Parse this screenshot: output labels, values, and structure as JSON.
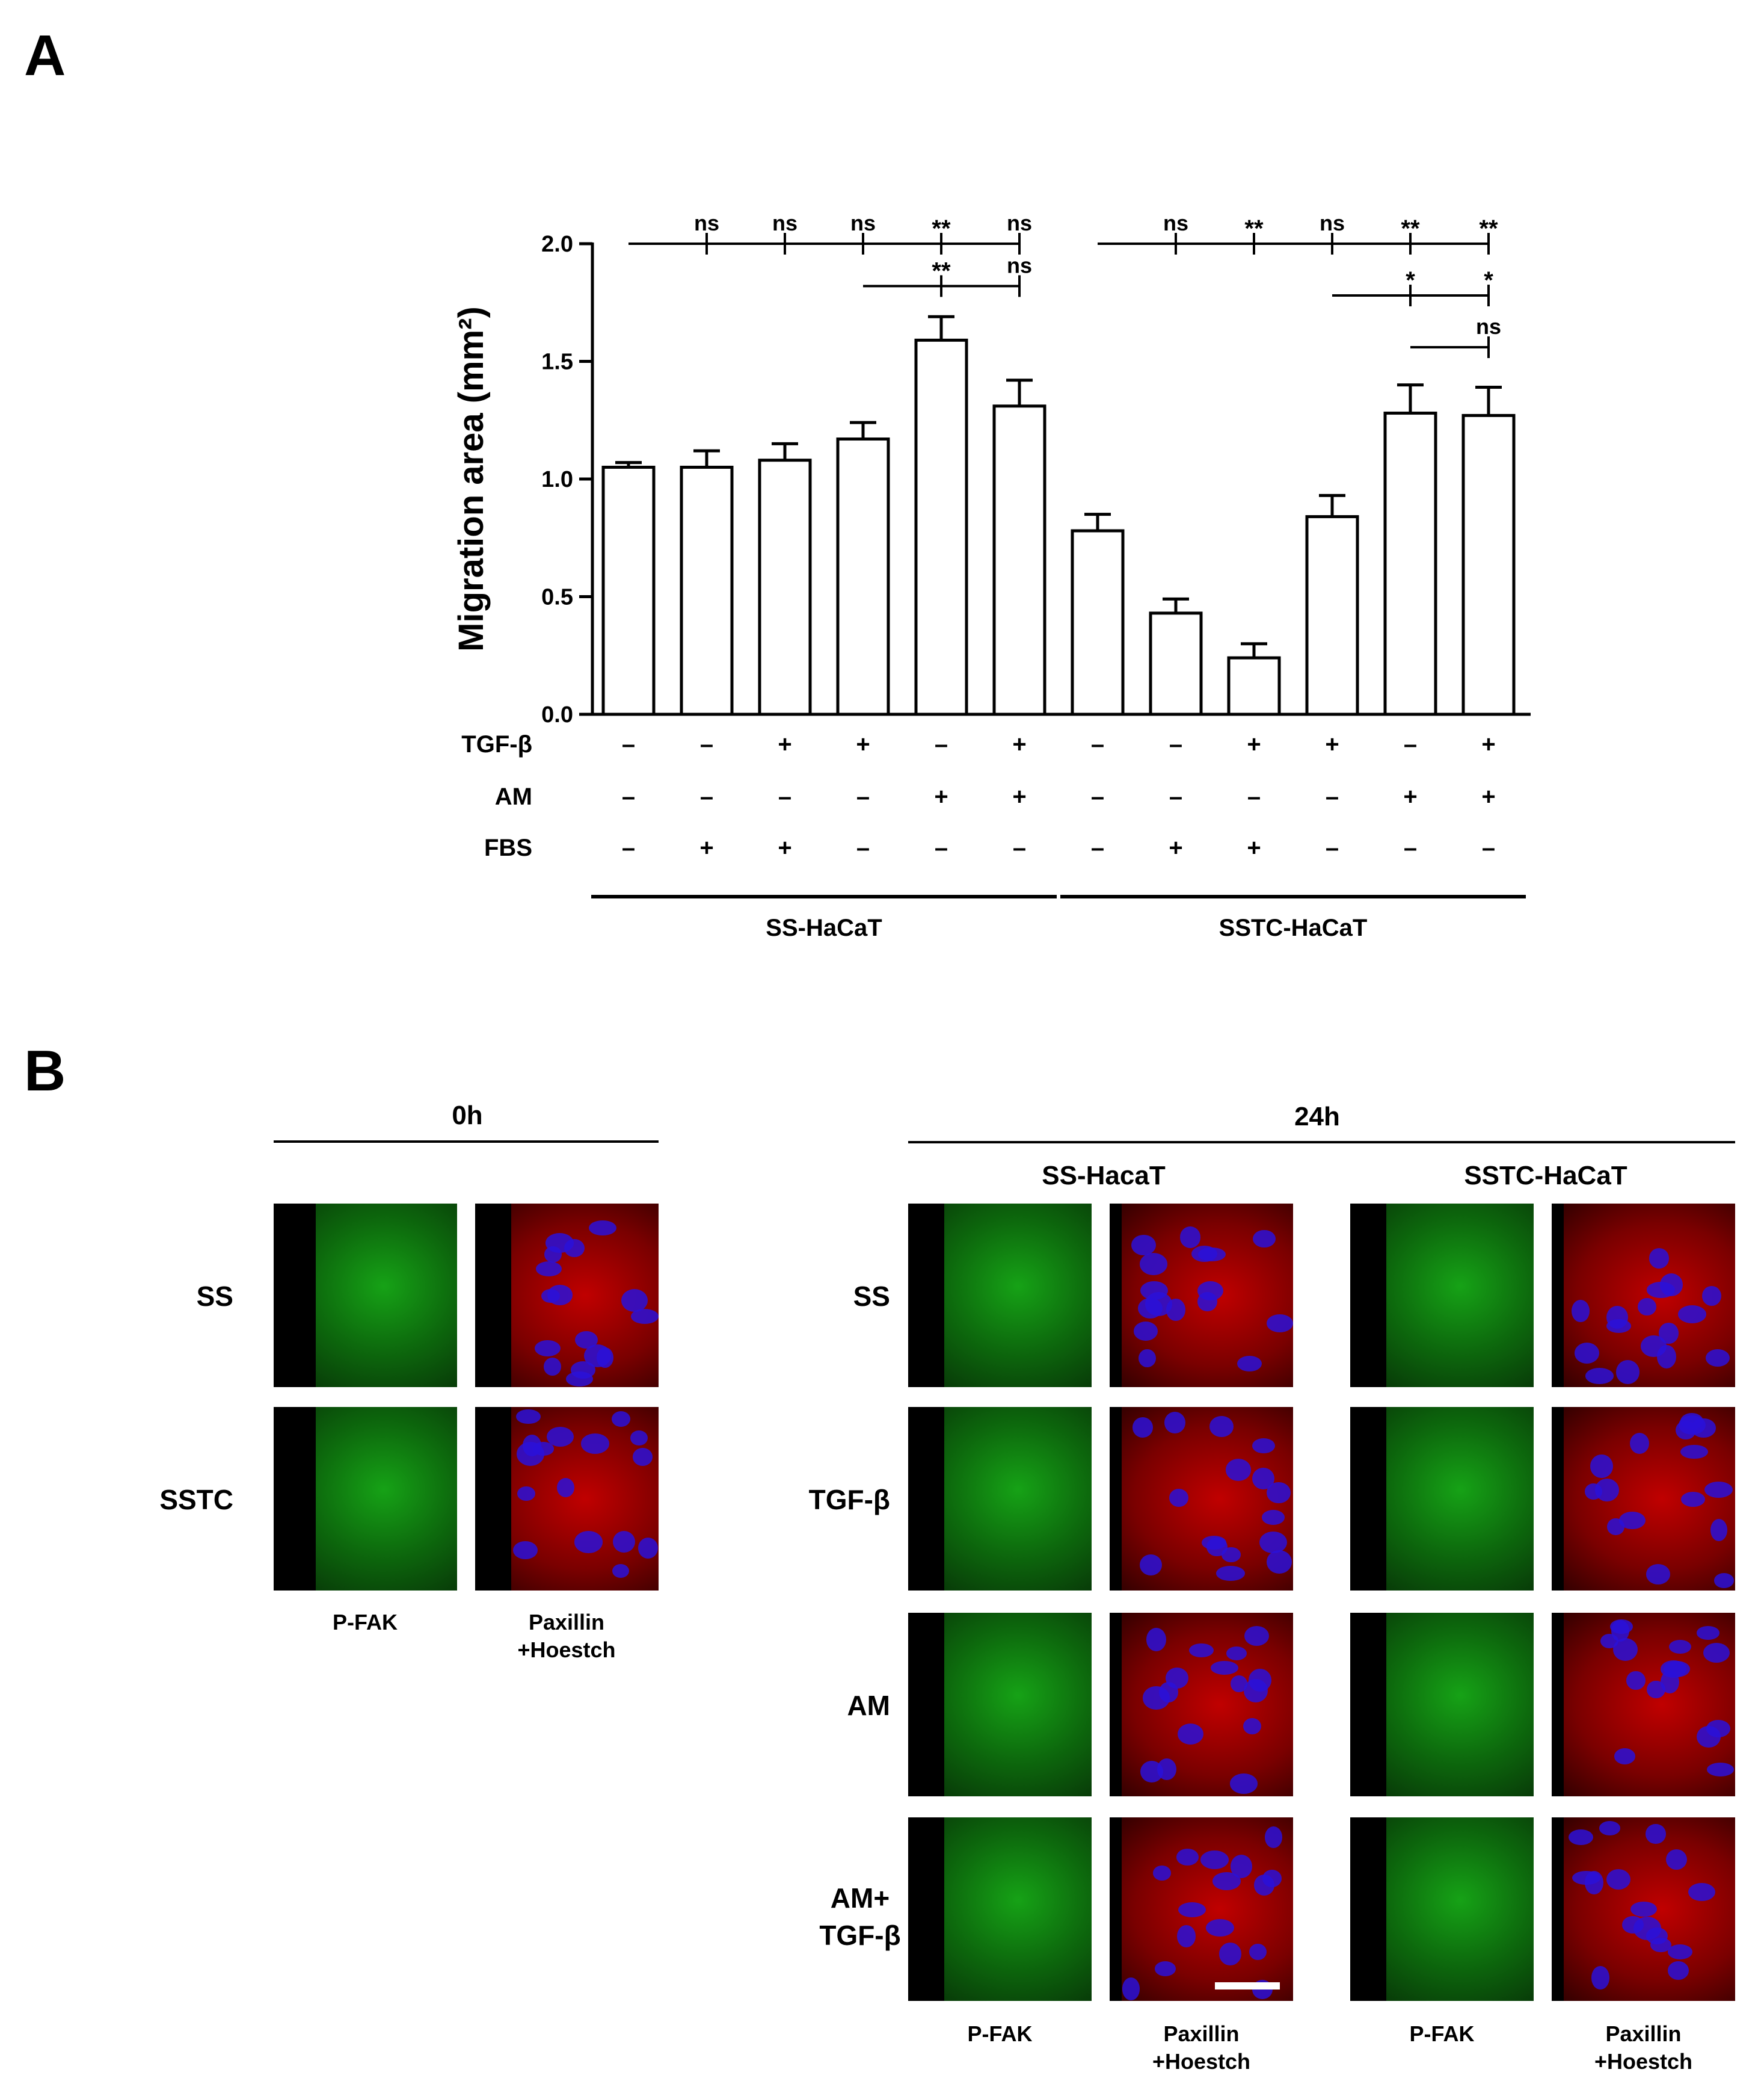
{
  "panel_a": {
    "letter": "A",
    "chart_data": {
      "type": "bar",
      "ylabel": "Migration area (mm²)",
      "ylim": [
        0.0,
        2.0
      ],
      "yticks": [
        "0.0",
        "0.5",
        "1.0",
        "1.5",
        "2.0"
      ],
      "grid": false,
      "values": [
        1.05,
        1.05,
        1.08,
        1.17,
        1.59,
        1.31,
        0.78,
        0.43,
        0.24,
        0.84,
        1.28,
        1.27
      ],
      "errors": [
        0.02,
        0.07,
        0.07,
        0.07,
        0.1,
        0.11,
        0.07,
        0.06,
        0.06,
        0.09,
        0.12,
        0.12
      ],
      "conditions": [
        {
          "label": "TGF-β",
          "signs": [
            "–",
            "–",
            "+",
            "+",
            "–",
            "+",
            "–",
            "–",
            "+",
            "+",
            "–",
            "+"
          ]
        },
        {
          "label": "AM",
          "signs": [
            "–",
            "–",
            "–",
            "–",
            "+",
            "+",
            "–",
            "–",
            "–",
            "–",
            "+",
            "+"
          ]
        },
        {
          "label": "FBS",
          "signs": [
            "–",
            "+",
            "+",
            "–",
            "–",
            "–",
            "–",
            "+",
            "+",
            "–",
            "–",
            "–"
          ]
        }
      ],
      "groups": [
        {
          "label": "SS-HaCaT",
          "from": 0,
          "to": 5
        },
        {
          "label": "SSTC-HaCaT",
          "from": 6,
          "to": 11
        }
      ],
      "significance": [
        {
          "from": 0,
          "y": 2.0,
          "marks": [
            {
              "bar": 1,
              "text": "ns"
            },
            {
              "bar": 2,
              "text": "ns"
            },
            {
              "bar": 3,
              "text": "ns"
            },
            {
              "bar": 4,
              "text": "**"
            },
            {
              "bar": 5,
              "text": "ns"
            }
          ]
        },
        {
          "from": 3,
          "y": 1.82,
          "marks": [
            {
              "bar": 4,
              "text": "**"
            },
            {
              "bar": 5,
              "text": "ns"
            }
          ]
        },
        {
          "from": 6,
          "y": 2.0,
          "marks": [
            {
              "bar": 7,
              "text": "ns"
            },
            {
              "bar": 8,
              "text": "**"
            },
            {
              "bar": 9,
              "text": "ns"
            },
            {
              "bar": 10,
              "text": "**"
            },
            {
              "bar": 11,
              "text": "**"
            }
          ]
        },
        {
          "from": 9,
          "y": 1.78,
          "marks": [
            {
              "bar": 10,
              "text": "*"
            },
            {
              "bar": 11,
              "text": "*"
            }
          ]
        },
        {
          "from": 10,
          "y": 1.56,
          "marks": [
            {
              "bar": 11,
              "text": "ns"
            }
          ]
        }
      ]
    }
  },
  "panel_b": {
    "letter": "B",
    "header_0h": "0h",
    "header_24h": "24h",
    "sub_ss": "SS-HacaT",
    "sub_sstc": "SSTC-HaCaT",
    "rows_0h": [
      "SS",
      "SSTC"
    ],
    "rows_24h": [
      "SS",
      "TGF-β",
      "AM",
      "AM+\nTGF-β"
    ],
    "col_pfak": "P-FAK",
    "col_pax": "Paxillin\n+Hoestch",
    "colors": {
      "green": "#16a216",
      "red": "#c00000",
      "blue": "#2a10d8"
    }
  }
}
